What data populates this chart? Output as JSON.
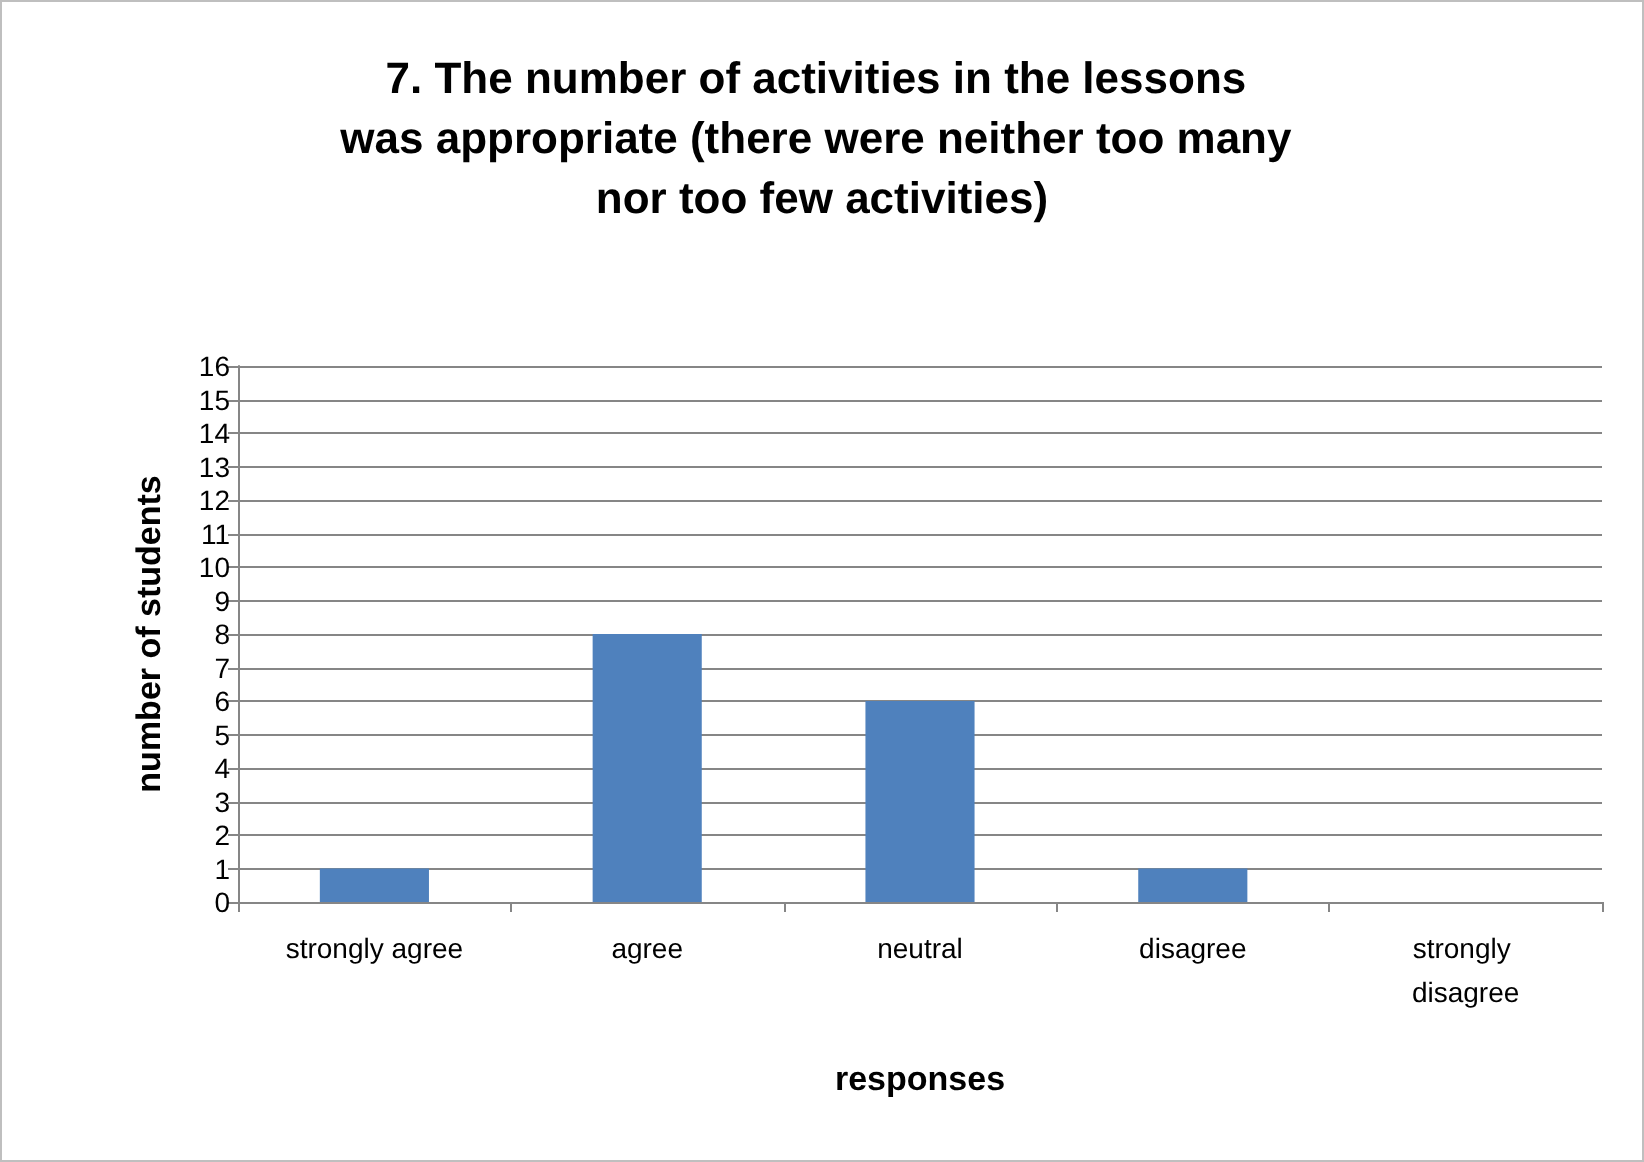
{
  "chart_data": {
    "type": "bar",
    "title": "7. The number of activities in the lessons was appropriate (there were neither too many nor too few activities)",
    "xlabel": "responses",
    "ylabel": "number of students",
    "categories": [
      "strongly agree",
      "agree",
      "neutral",
      "disagree",
      "strongly disagree"
    ],
    "values": [
      1,
      8,
      6,
      1,
      0
    ],
    "color": "#4f81bd",
    "ylim": [
      0,
      16
    ],
    "yticks": [
      0,
      1,
      2,
      3,
      4,
      5,
      6,
      7,
      8,
      9,
      10,
      11,
      12,
      13,
      14,
      15,
      16
    ],
    "grid": "y"
  }
}
